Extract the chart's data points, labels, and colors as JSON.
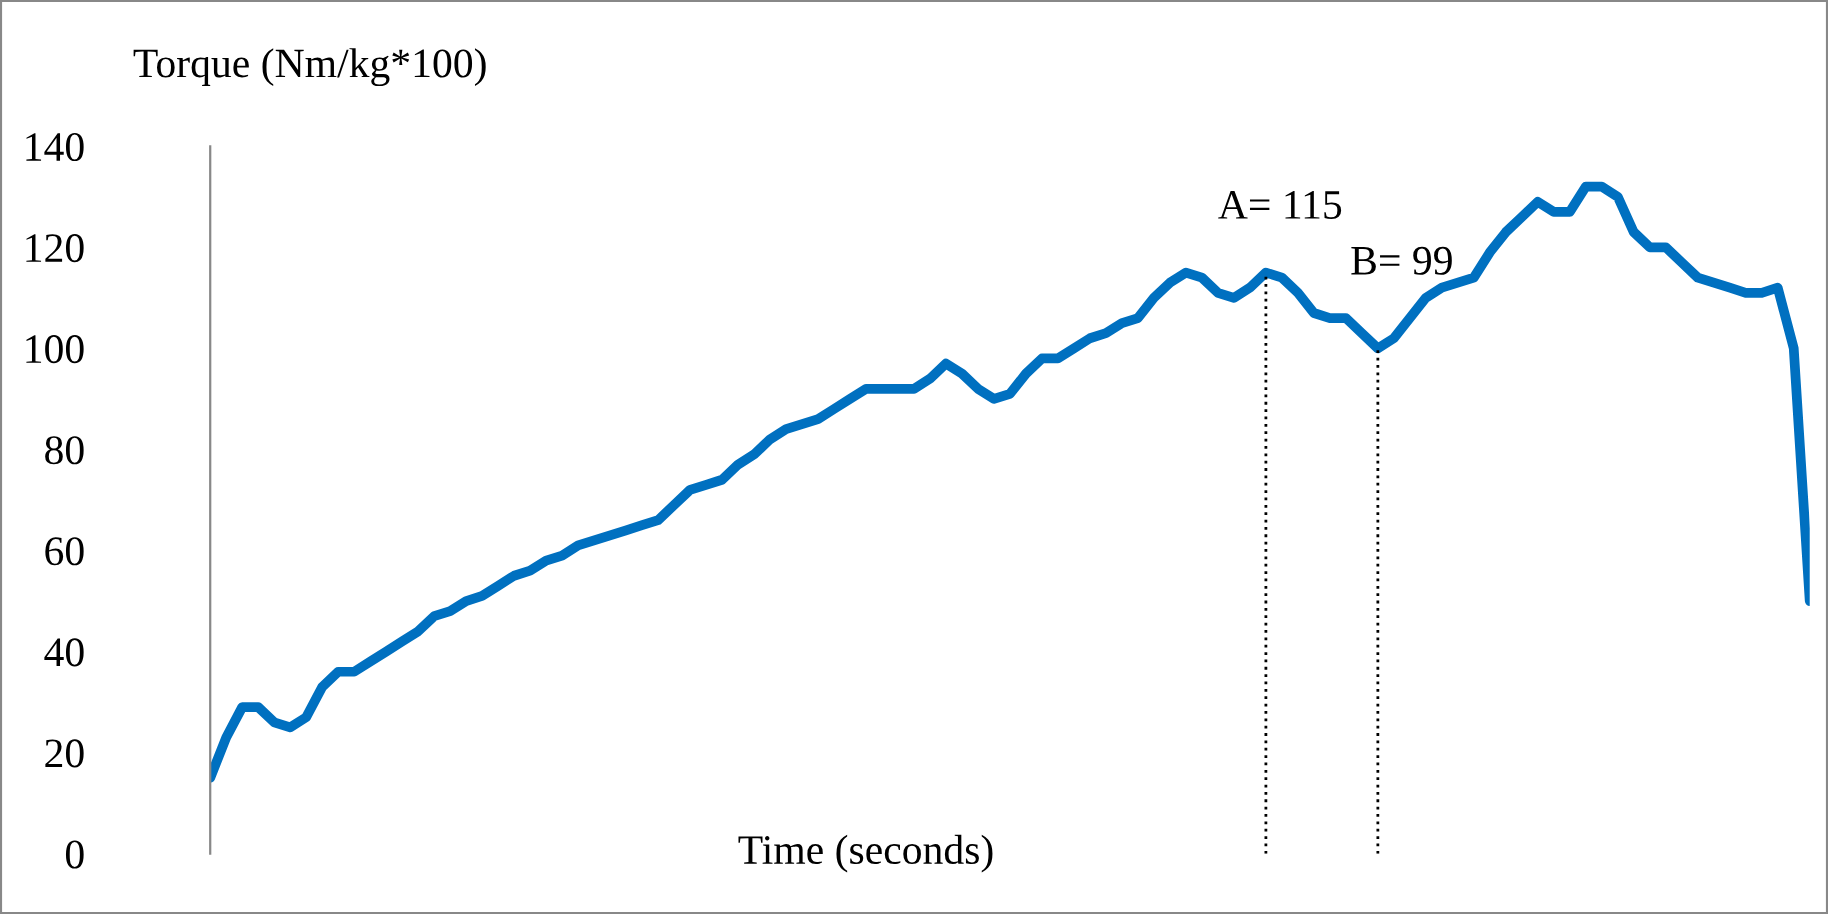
{
  "chart_data": {
    "type": "line",
    "ylabel": "Torque (Nm/kg*100)",
    "xlabel": "Time (seconds)",
    "categories": [
      null,
      null,
      null,
      null,
      null,
      null,
      null,
      null,
      null,
      null,
      null,
      null,
      null,
      null,
      null,
      null,
      null,
      null,
      null,
      null,
      null,
      null,
      null,
      null,
      null,
      null,
      null,
      null,
      null,
      null,
      null,
      null,
      null,
      null,
      null,
      null,
      null,
      null,
      null,
      null,
      null,
      null,
      null,
      null,
      null,
      null,
      null,
      null,
      null,
      null,
      null,
      null,
      null,
      null,
      null,
      null,
      null,
      null,
      null,
      null,
      null,
      null,
      null,
      null,
      null,
      null,
      null,
      null,
      null,
      null,
      null,
      null,
      null,
      null,
      null,
      null,
      null,
      null,
      null,
      null,
      null,
      null,
      null,
      null,
      null,
      null,
      null,
      null,
      null,
      null,
      null,
      null,
      null,
      null,
      null,
      null,
      null,
      null,
      null,
      null,
      null
    ],
    "series": [
      {
        "color": "#0070c0",
        "values": [
          15,
          23,
          29,
          29,
          26,
          25,
          27,
          33,
          36,
          36,
          38,
          40,
          42,
          44,
          47,
          48,
          50,
          51,
          53,
          55,
          56,
          58,
          59,
          61,
          62,
          63,
          64,
          65,
          66,
          69,
          72,
          73,
          74,
          77,
          79,
          82,
          84,
          85,
          86,
          88,
          90,
          92,
          92,
          92,
          92,
          94,
          97,
          95,
          92,
          90,
          91,
          95,
          98,
          98,
          100,
          102,
          103,
          105,
          106,
          110,
          113,
          115,
          114,
          111,
          110,
          112,
          115,
          114,
          111,
          107,
          106,
          106,
          103,
          100,
          102,
          106,
          110,
          112,
          113,
          114,
          119,
          123,
          126,
          129,
          127,
          127,
          132,
          132,
          130,
          123,
          120,
          120,
          117,
          114,
          113,
          112,
          111,
          111,
          112,
          100,
          50
        ]
      }
    ],
    "annotations": [
      "A= 115",
      "B= 99"
    ],
    "ylim": [
      0,
      140
    ],
    "yticks": [
      0,
      20,
      40,
      60,
      80,
      100,
      120,
      140
    ],
    "tick_labels": "y",
    "grid": false,
    "legend": false,
    "marker": "none",
    "line_style": "solid"
  }
}
